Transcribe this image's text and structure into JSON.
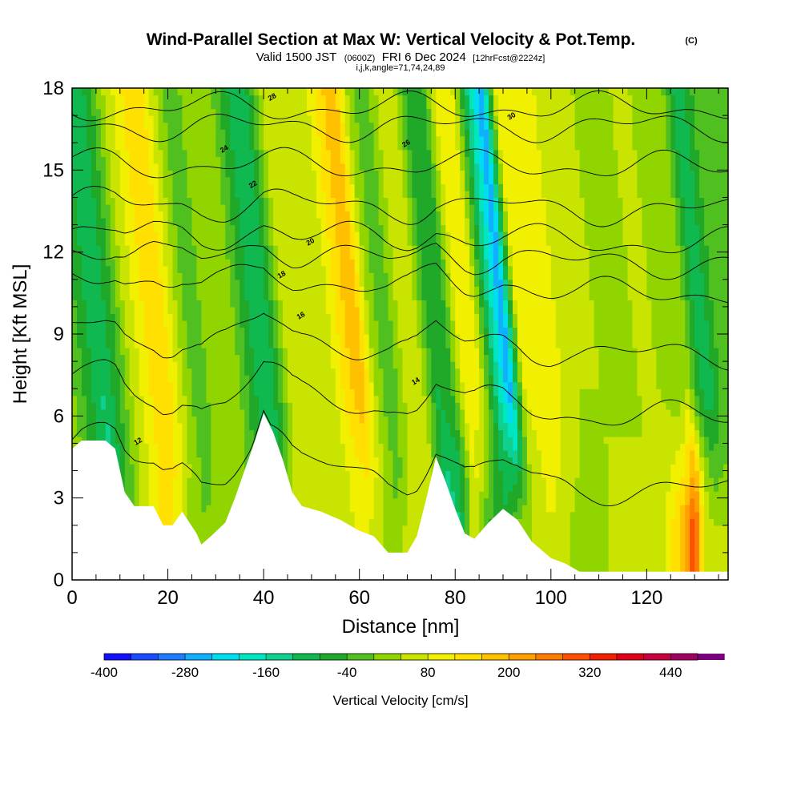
{
  "title": {
    "main": "Wind-Parallel Section at Max W: Vertical Velocity & Pot.Temp.",
    "copyright": "(C)",
    "valid_prefix": "Valid 1500 JST",
    "valid_utc": "(0600Z)",
    "valid_date": "FRI 6 Dec 2024",
    "forecast": "[12hrFcst@2224z]",
    "indices": "i,j,k,angle=71,74,24,89"
  },
  "chart_data": {
    "type": "heatmap",
    "xlabel": "Distance [nm]",
    "ylabel": "Height [Kft MSL]",
    "xlim": [
      0,
      137
    ],
    "ylim": [
      0,
      18
    ],
    "x_ticks": [
      0,
      20,
      40,
      60,
      80,
      100,
      120
    ],
    "y_ticks": [
      0,
      3,
      6,
      9,
      12,
      15,
      18
    ],
    "grid": false,
    "colorbar": {
      "title": "Vertical Velocity [cm/s]",
      "min": -400,
      "max": 480,
      "step": 40,
      "tick_values": [
        -400,
        -280,
        -160,
        -40,
        80,
        200,
        320,
        440
      ],
      "tick_labels": [
        "-400",
        "-280",
        "-160",
        "-40",
        "80",
        "200",
        "320",
        "440"
      ],
      "colors": [
        "#1010ff",
        "#1a4cff",
        "#1f7cff",
        "#10b0ff",
        "#00dcf0",
        "#00e6c0",
        "#10d090",
        "#10b850",
        "#20a828",
        "#50c020",
        "#90d400",
        "#c8e400",
        "#f0f000",
        "#ffe000",
        "#ffc000",
        "#ffa000",
        "#ff7c00",
        "#ff5000",
        "#f02000",
        "#e00018",
        "#c80040",
        "#a00060",
        "#780078"
      ]
    },
    "velocity_bands": [
      {
        "x": 0,
        "w_mid": 40,
        "w_low": 60
      },
      {
        "x": 4,
        "w_mid": -40,
        "w_low": -40
      },
      {
        "x": 8,
        "w_mid": -120,
        "w_low": -160
      },
      {
        "x": 11,
        "w_mid": -60,
        "w_low": -40
      },
      {
        "x": 14,
        "w_mid": 40,
        "w_low": 40
      },
      {
        "x": 18,
        "w_mid": 120,
        "w_low": 120
      },
      {
        "x": 21,
        "w_mid": 160,
        "w_low": 120
      },
      {
        "x": 25,
        "w_mid": 40,
        "w_low": 20
      },
      {
        "x": 28,
        "w_mid": -40,
        "w_low": 0
      },
      {
        "x": 32,
        "w_mid": 40,
        "w_low": 40
      },
      {
        "x": 36,
        "w_mid": 20,
        "w_low": 0
      },
      {
        "x": 40,
        "w_mid": -80,
        "w_low": -80
      },
      {
        "x": 43,
        "w_mid": -120,
        "w_low": -40
      },
      {
        "x": 47,
        "w_mid": 40,
        "w_low": 80
      },
      {
        "x": 51,
        "w_mid": 80,
        "w_low": 40
      },
      {
        "x": 55,
        "w_mid": 40,
        "w_low": 40
      },
      {
        "x": 59,
        "w_mid": 140,
        "w_low": 80
      },
      {
        "x": 62,
        "w_mid": 200,
        "w_low": 80
      },
      {
        "x": 65,
        "w_mid": 40,
        "w_low": 40
      },
      {
        "x": 68,
        "w_mid": -40,
        "w_low": 0
      },
      {
        "x": 71,
        "w_mid": 40,
        "w_low": 80
      },
      {
        "x": 75,
        "w_mid": 40,
        "w_low": 40
      },
      {
        "x": 78,
        "w_mid": -80,
        "w_low": -160
      },
      {
        "x": 81,
        "w_mid": -40,
        "w_low": -120
      },
      {
        "x": 84,
        "w_mid": 120,
        "w_low": 80
      },
      {
        "x": 87,
        "w_mid": 80,
        "w_low": -40
      },
      {
        "x": 90,
        "w_mid": -120,
        "w_low": -80
      },
      {
        "x": 93,
        "w_mid": -280,
        "w_low": 0
      },
      {
        "x": 96,
        "w_mid": 80,
        "w_low": 40
      },
      {
        "x": 100,
        "w_mid": 120,
        "w_low": 80
      },
      {
        "x": 104,
        "w_mid": 80,
        "w_low": 40
      },
      {
        "x": 108,
        "w_mid": 40,
        "w_low": 0
      },
      {
        "x": 112,
        "w_mid": 40,
        "w_low": 40
      },
      {
        "x": 116,
        "w_mid": 20,
        "w_low": 80
      },
      {
        "x": 120,
        "w_mid": 40,
        "w_low": 40
      },
      {
        "x": 124,
        "w_mid": 40,
        "w_low": 80
      },
      {
        "x": 128,
        "w_mid": 0,
        "w_low": 200
      },
      {
        "x": 130,
        "w_mid": 40,
        "w_low": 320
      },
      {
        "x": 132,
        "w_mid": -40,
        "w_low": 80
      },
      {
        "x": 134,
        "w_mid": -120,
        "w_low": 40
      },
      {
        "x": 137,
        "w_mid": -40,
        "w_low": 40
      }
    ],
    "terrain": [
      {
        "x": 0,
        "h": 4.8
      },
      {
        "x": 2,
        "h": 5.1
      },
      {
        "x": 7,
        "h": 5.1
      },
      {
        "x": 9,
        "h": 4.8
      },
      {
        "x": 11,
        "h": 3.2
      },
      {
        "x": 13,
        "h": 2.7
      },
      {
        "x": 17,
        "h": 2.7
      },
      {
        "x": 19,
        "h": 2.0
      },
      {
        "x": 21,
        "h": 2.0
      },
      {
        "x": 23,
        "h": 2.5
      },
      {
        "x": 26,
        "h": 1.7
      },
      {
        "x": 27,
        "h": 1.3
      },
      {
        "x": 29,
        "h": 1.6
      },
      {
        "x": 32,
        "h": 2.1
      },
      {
        "x": 34,
        "h": 3.0
      },
      {
        "x": 36,
        "h": 4.0
      },
      {
        "x": 38,
        "h": 5.0
      },
      {
        "x": 40,
        "h": 6.1
      },
      {
        "x": 42,
        "h": 5.4
      },
      {
        "x": 44,
        "h": 4.4
      },
      {
        "x": 46,
        "h": 3.2
      },
      {
        "x": 48,
        "h": 2.7
      },
      {
        "x": 52,
        "h": 2.5
      },
      {
        "x": 56,
        "h": 2.2
      },
      {
        "x": 60,
        "h": 1.8
      },
      {
        "x": 63,
        "h": 1.6
      },
      {
        "x": 66,
        "h": 1.0
      },
      {
        "x": 70,
        "h": 1.0
      },
      {
        "x": 72,
        "h": 1.6
      },
      {
        "x": 74,
        "h": 3.0
      },
      {
        "x": 76,
        "h": 4.5
      },
      {
        "x": 78,
        "h": 3.6
      },
      {
        "x": 80,
        "h": 2.6
      },
      {
        "x": 82,
        "h": 1.7
      },
      {
        "x": 84,
        "h": 1.5
      },
      {
        "x": 87,
        "h": 2.1
      },
      {
        "x": 90,
        "h": 2.6
      },
      {
        "x": 93,
        "h": 2.2
      },
      {
        "x": 96,
        "h": 1.4
      },
      {
        "x": 100,
        "h": 0.8
      },
      {
        "x": 103,
        "h": 0.6
      },
      {
        "x": 106,
        "h": 0.3
      },
      {
        "x": 137,
        "h": 0.3
      }
    ],
    "theta_levels": [
      {
        "base": 4.2,
        "label": "12",
        "lx": 14,
        "ly": 5.0
      },
      {
        "base": 6.7,
        "label": "14",
        "lx": 72,
        "ly": 7.2
      },
      {
        "base": 8.8,
        "label": "16",
        "lx": 48,
        "ly": 9.6
      },
      {
        "base": 10.9,
        "label": "18",
        "lx": 44,
        "ly": 11.1
      },
      {
        "base": 11.9,
        "label": "20",
        "lx": 50,
        "ly": 12.3
      },
      {
        "base": 12.6,
        "label": "22",
        "lx": 38,
        "ly": 14.4
      },
      {
        "base": 13.7,
        "label": "24",
        "lx": 32,
        "ly": 15.7
      },
      {
        "base": 15.2,
        "label": "26",
        "lx": 70,
        "ly": 15.9
      },
      {
        "base": 16.6,
        "label": "28",
        "lx": 42,
        "ly": 17.6
      },
      {
        "base": 17.3,
        "label": "30",
        "lx": 92,
        "ly": 16.9
      }
    ]
  }
}
